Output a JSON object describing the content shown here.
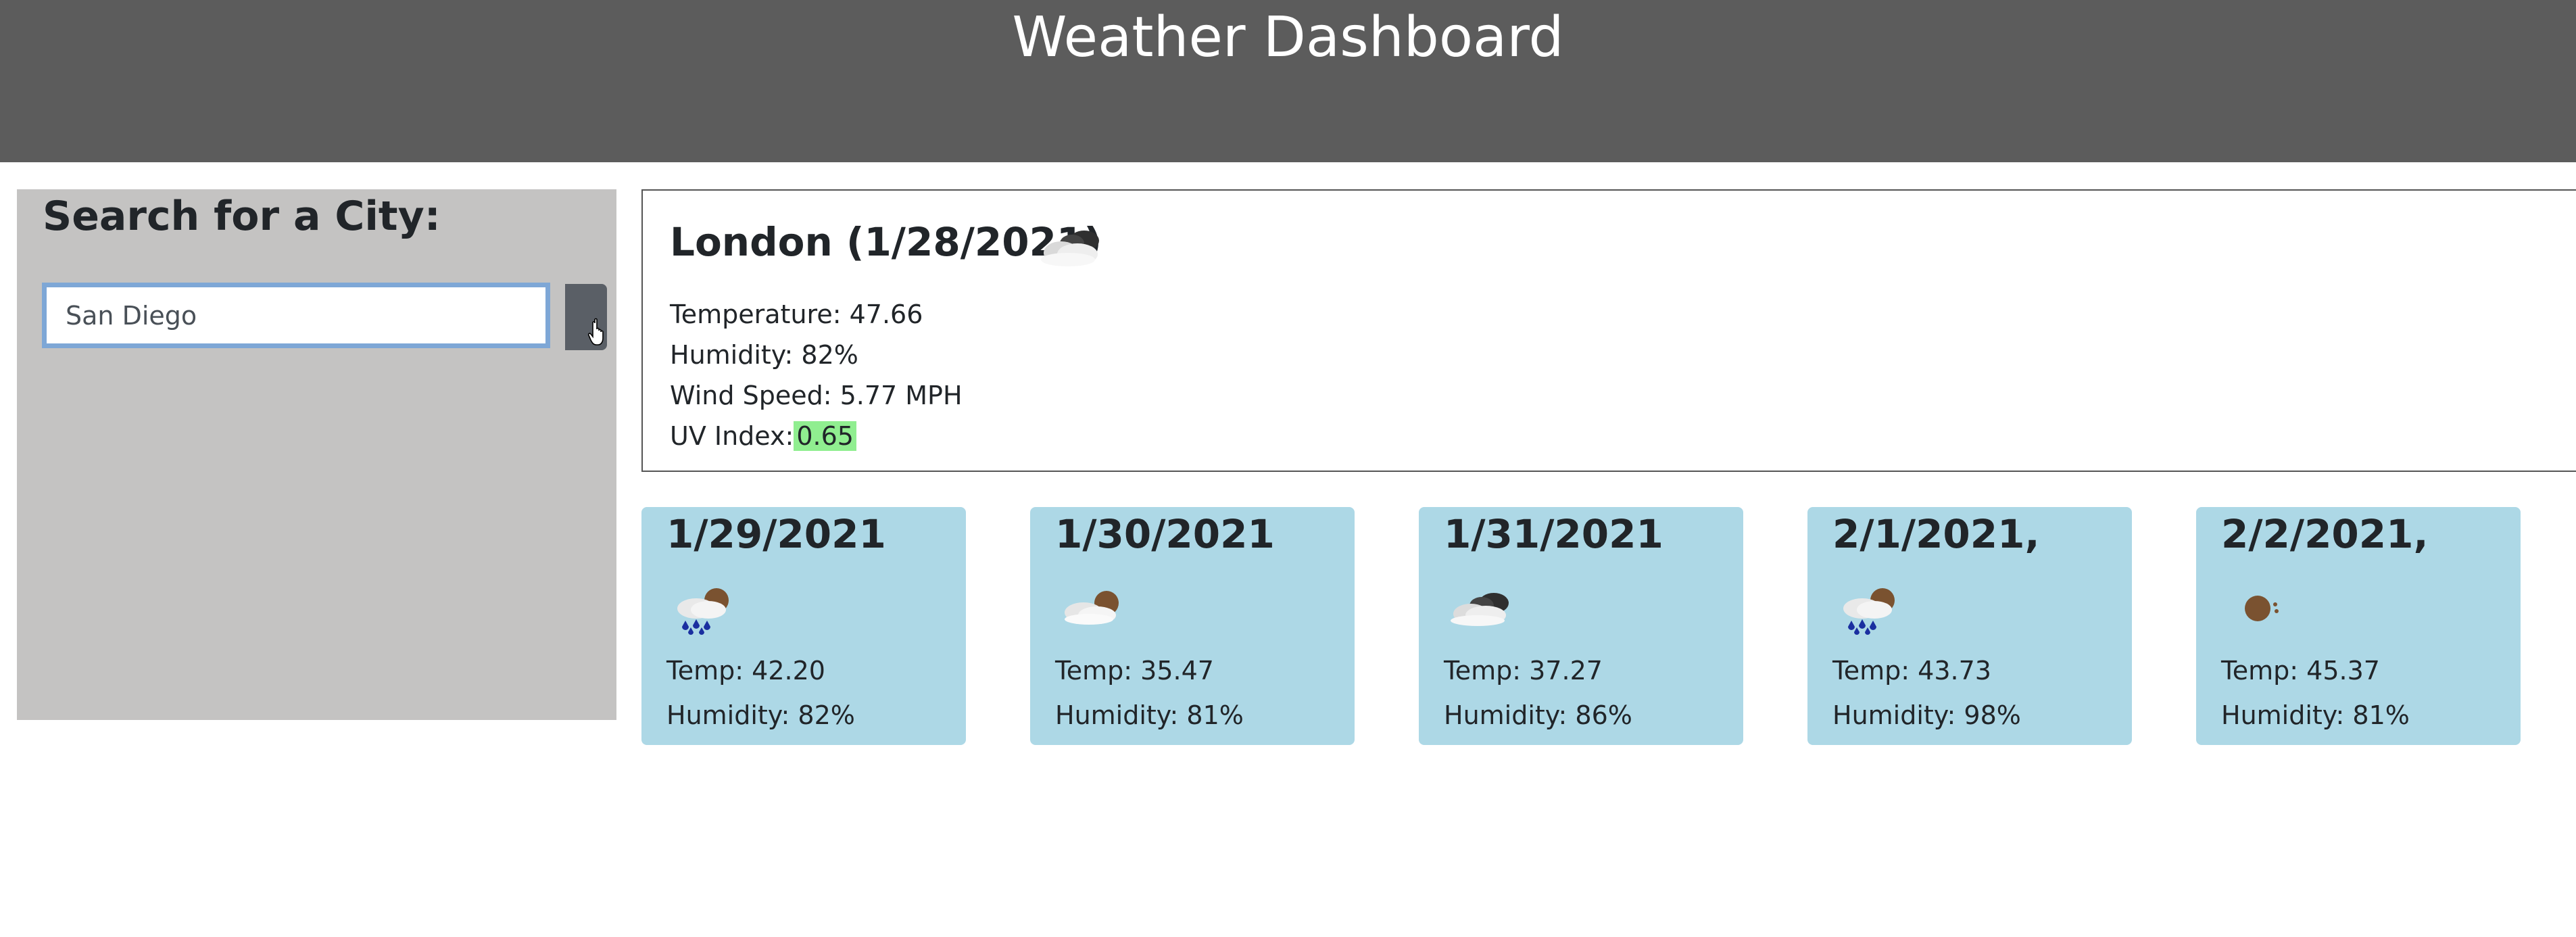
{
  "header": {
    "title": "Weather Dashboard"
  },
  "sidebar": {
    "title": "Search for a City:",
    "search_value": "San Diego"
  },
  "current": {
    "heading": "London (1/28/2021)",
    "icon": "cloudy-icon",
    "temperature": "Temperature: 47.66",
    "humidity": "Humidity: 82%",
    "wind": "Wind Speed: 5.77 MPH",
    "uv_label": "UV Index:",
    "uv_value": "0.65",
    "uv_color": "#90ee90"
  },
  "forecast": [
    {
      "date": "1/29/2021",
      "icon": "rain-icon",
      "temp": "Temp: 42.20",
      "humidity": "Humidity: 82%"
    },
    {
      "date": "1/30/2021",
      "icon": "partly-cloudy-icon",
      "temp": "Temp: 35.47",
      "humidity": "Humidity: 81%"
    },
    {
      "date": "1/31/2021",
      "icon": "cloudy-icon",
      "temp": "Temp: 37.27",
      "humidity": "Humidity: 86%"
    },
    {
      "date": "2/1/2021,",
      "icon": "rain-icon",
      "temp": "Temp: 43.73",
      "humidity": "Humidity: 98%"
    },
    {
      "date": "2/2/2021,",
      "icon": "sun-icon",
      "temp": "Temp: 45.37",
      "humidity": "Humidity: 81%"
    }
  ],
  "colors": {
    "header_bg": "#5c5c5c",
    "sidebar_bg": "#c4c3c2",
    "forecast_bg": "#add8e6"
  }
}
